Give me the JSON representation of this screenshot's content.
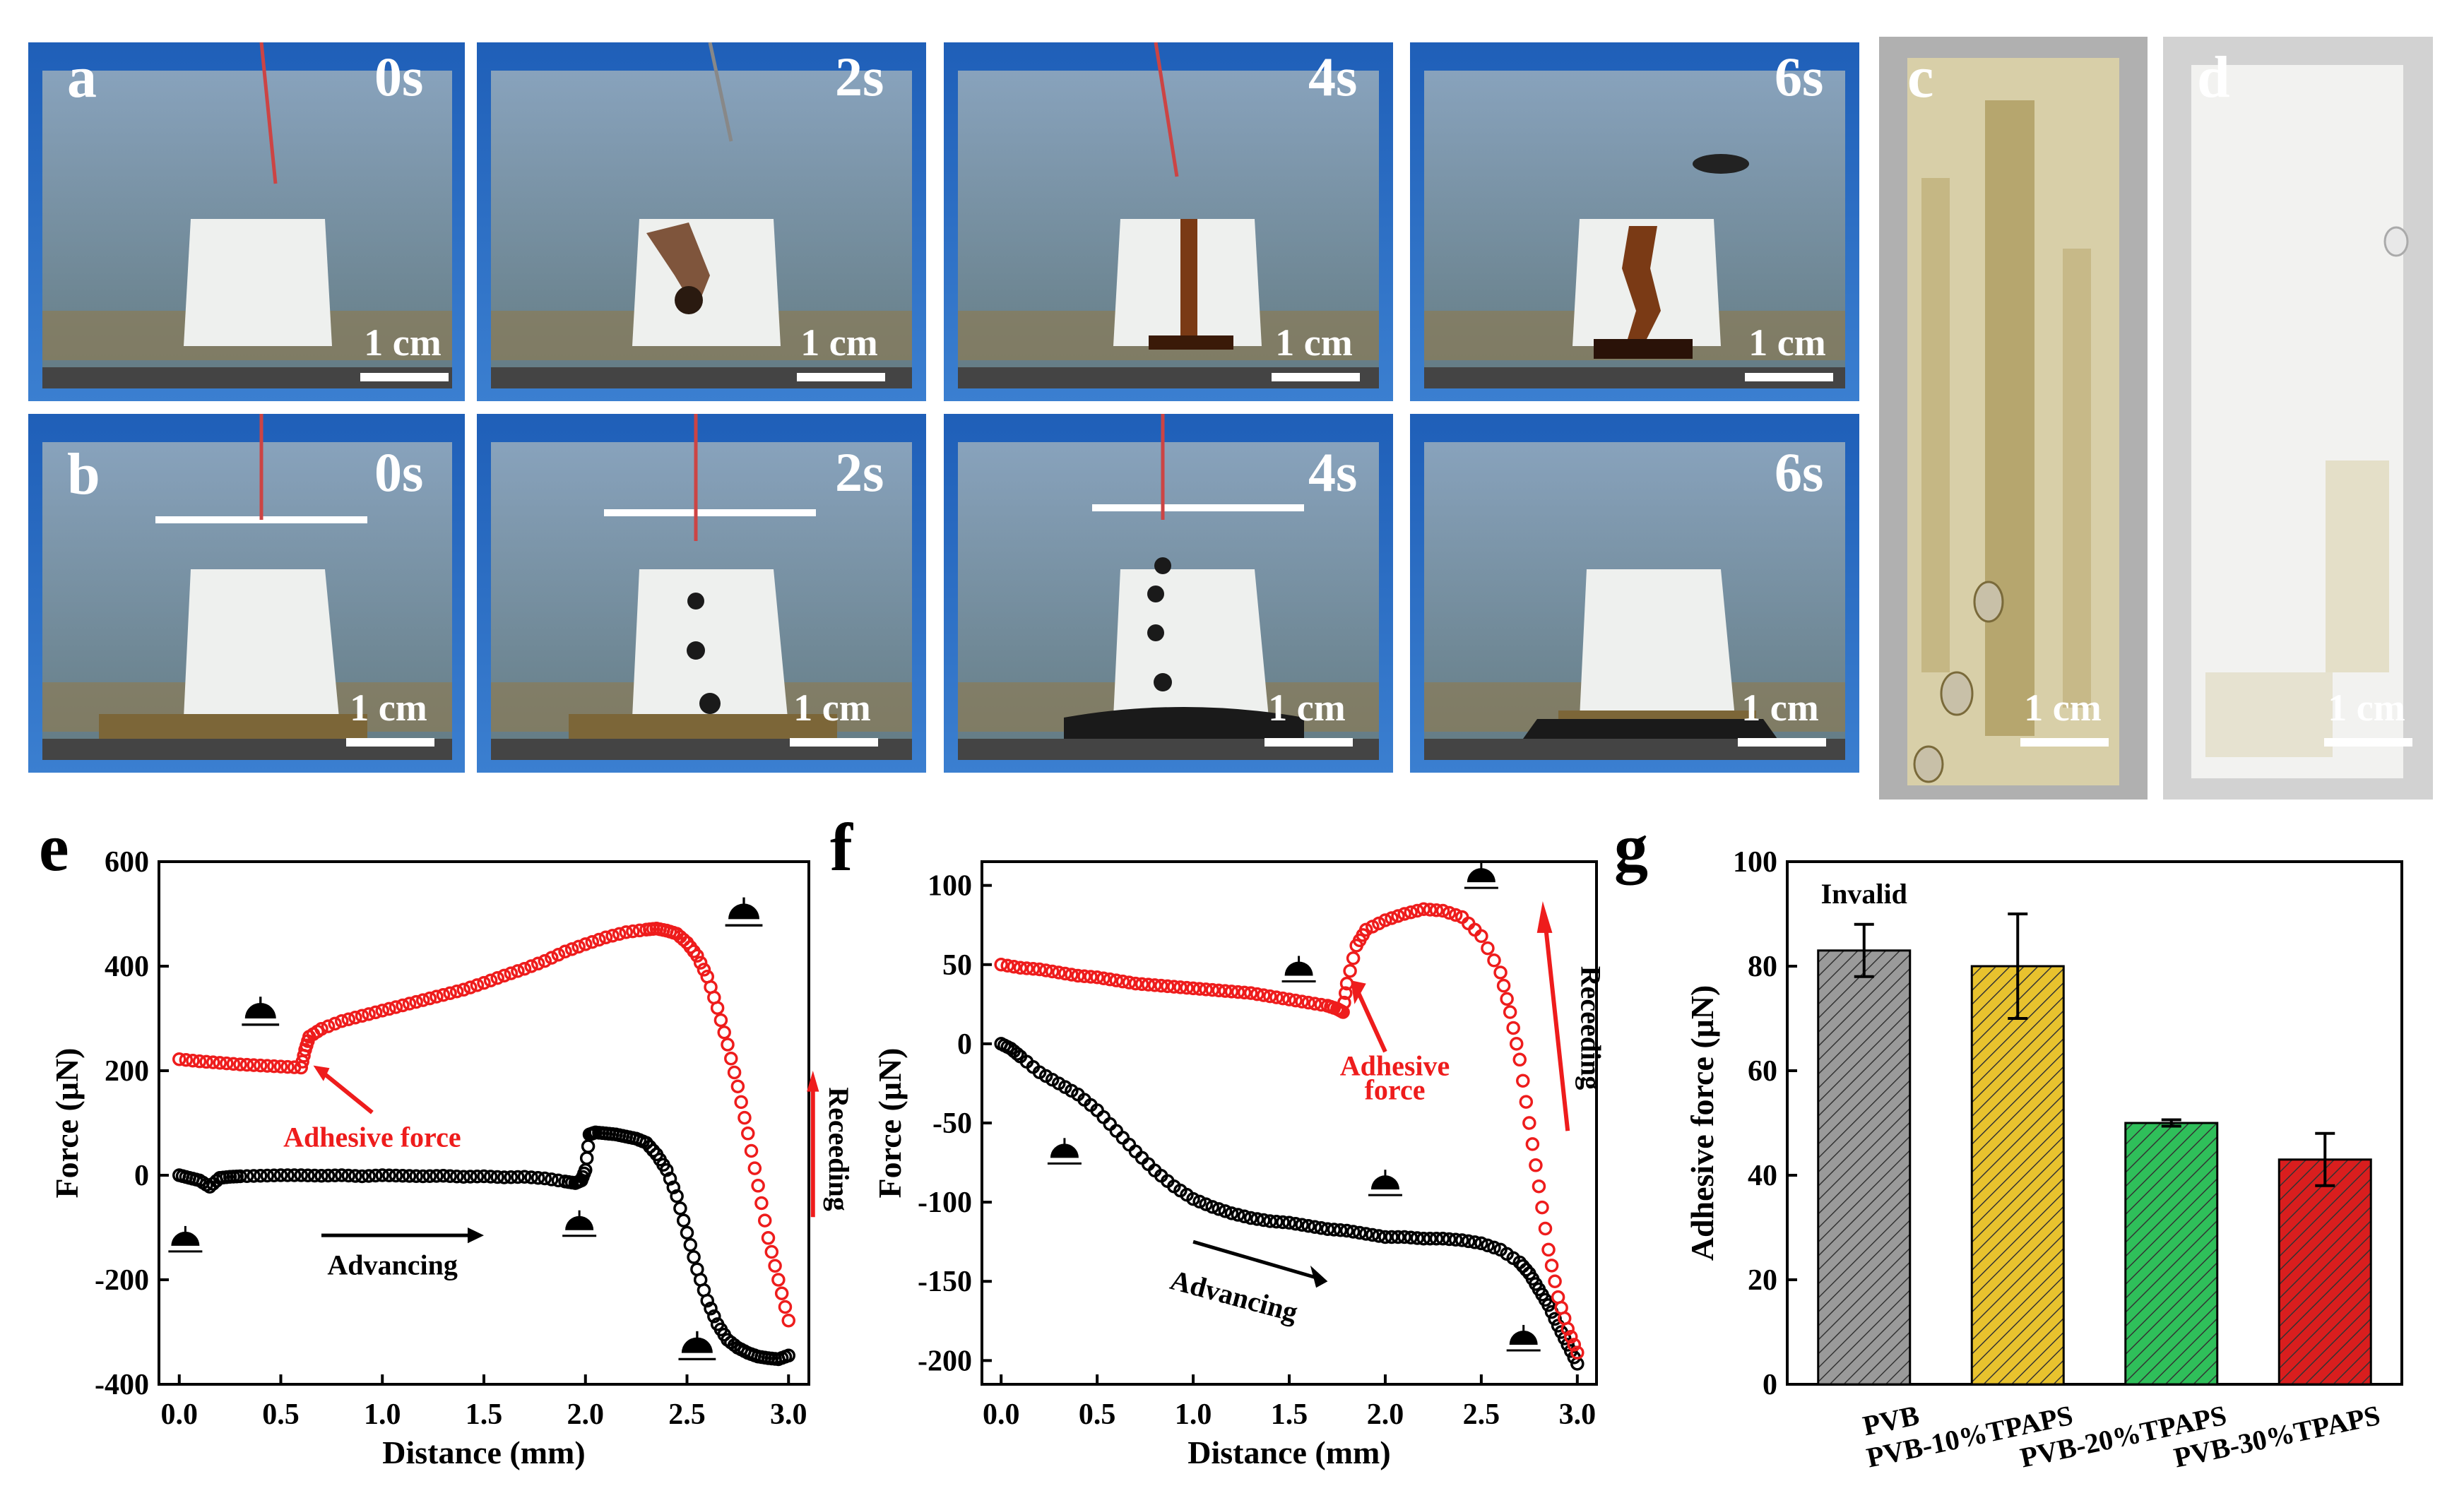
{
  "panel_labels": {
    "a": "a",
    "b": "b",
    "c": "c",
    "d": "d",
    "e": "e",
    "f": "f",
    "g": "g"
  },
  "photos": {
    "row_a": [
      {
        "time": "0s",
        "scale": "1 cm"
      },
      {
        "time": "2s",
        "scale": "1 cm"
      },
      {
        "time": "4s",
        "scale": "1 cm"
      },
      {
        "time": "6s",
        "scale": "1 cm"
      }
    ],
    "row_b": [
      {
        "time": "0s",
        "scale": "1 cm"
      },
      {
        "time": "2s",
        "scale": "1 cm"
      },
      {
        "time": "4s",
        "scale": "1 cm"
      },
      {
        "time": "6s",
        "scale": "1 cm"
      }
    ],
    "c": {
      "scale": "1 cm"
    },
    "d": {
      "scale": "1 cm"
    }
  },
  "colors": {
    "advancing": "#000000",
    "receding": "#ee1c1c",
    "annotation": "#ee1c1c",
    "PVB": "#9a9a9a",
    "PVB-10%TPAPS": "#e8c22e",
    "PVB-20%TPAPS": "#2fbf5a",
    "PVB-30%TPAPS": "#d91e1e"
  },
  "chart_data": [
    {
      "panel": "e",
      "type": "scatter",
      "xlabel": "Distance (mm)",
      "ylabel": "Force (μN)",
      "xlim": [
        -0.1,
        3.1
      ],
      "ylim": [
        -400,
        600
      ],
      "xticks": [
        0.0,
        0.5,
        1.0,
        1.5,
        2.0,
        2.5,
        3.0
      ],
      "xtick_labels": [
        "0.0",
        "0.5",
        "1.0",
        "1.5",
        "2.0",
        "2.5",
        "3.0"
      ],
      "yticks": [
        -400,
        -200,
        0,
        200,
        400,
        600
      ],
      "ytick_labels": [
        "-400",
        "-200",
        "0",
        "200",
        "400",
        "600"
      ],
      "series": [
        {
          "key": "advancing_e",
          "color": "#000000",
          "x": [
            0.0,
            0.05,
            0.1,
            0.15,
            0.2,
            0.25,
            0.3,
            0.4,
            0.5,
            0.6,
            0.7,
            0.8,
            0.9,
            1.0,
            1.1,
            1.2,
            1.3,
            1.4,
            1.5,
            1.6,
            1.7,
            1.8,
            1.9,
            1.95,
            1.98,
            2.0,
            2.02,
            2.05,
            2.1,
            2.15,
            2.2,
            2.25,
            2.3,
            2.35,
            2.4,
            2.45,
            2.5,
            2.55,
            2.6,
            2.65,
            2.7,
            2.75,
            2.8,
            2.85,
            2.9,
            2.95,
            3.0
          ],
          "y": [
            0,
            -5,
            -10,
            -22,
            -5,
            -3,
            -2,
            -1,
            0,
            0,
            -1,
            0,
            -2,
            0,
            -1,
            -2,
            -1,
            -3,
            -2,
            -4,
            -3,
            -6,
            -12,
            -15,
            -10,
            10,
            78,
            82,
            80,
            78,
            74,
            70,
            62,
            40,
            10,
            -40,
            -110,
            -180,
            -240,
            -285,
            -315,
            -330,
            -340,
            -347,
            -350,
            -352,
            -345
          ]
        },
        {
          "key": "receding_e",
          "color": "#ee1c1c",
          "x": [
            0.0,
            0.1,
            0.2,
            0.3,
            0.4,
            0.5,
            0.6,
            0.62,
            0.64,
            0.7,
            0.8,
            0.9,
            1.0,
            1.1,
            1.2,
            1.3,
            1.4,
            1.5,
            1.6,
            1.7,
            1.8,
            1.9,
            2.0,
            2.1,
            2.2,
            2.3,
            2.35,
            2.4,
            2.45,
            2.5,
            2.55,
            2.6,
            2.65,
            2.7,
            2.75,
            2.8,
            2.85,
            2.9,
            2.95,
            3.0
          ],
          "y": [
            222,
            218,
            215,
            212,
            210,
            208,
            206,
            240,
            265,
            280,
            295,
            305,
            315,
            325,
            335,
            345,
            355,
            368,
            382,
            395,
            410,
            428,
            442,
            455,
            465,
            470,
            472,
            468,
            462,
            445,
            420,
            380,
            320,
            250,
            170,
            80,
            -20,
            -120,
            -200,
            -278
          ]
        }
      ],
      "annotations": [
        {
          "text": "Adhesive  force",
          "color": "#ee1c1c"
        },
        {
          "text": "Advancing",
          "color": "#000000"
        },
        {
          "text": "Receeding",
          "color": "#ee1c1c"
        }
      ]
    },
    {
      "panel": "f",
      "type": "scatter",
      "xlabel": "Distance (mm)",
      "ylabel": "Force (μN)",
      "xlim": [
        -0.1,
        3.1
      ],
      "ylim": [
        -215,
        115
      ],
      "xticks": [
        0.0,
        0.5,
        1.0,
        1.5,
        2.0,
        2.5,
        3.0
      ],
      "xtick_labels": [
        "0.0",
        "0.5",
        "1.0",
        "1.5",
        "2.0",
        "2.5",
        "3.0"
      ],
      "yticks": [
        -200,
        -150,
        -100,
        -50,
        0,
        50,
        100
      ],
      "ytick_labels": [
        "-200",
        "-150",
        "-100",
        "-50",
        "0",
        "50",
        "100"
      ],
      "series": [
        {
          "key": "advancing_f",
          "color": "#000000",
          "x": [
            0.0,
            0.05,
            0.1,
            0.2,
            0.3,
            0.4,
            0.5,
            0.6,
            0.7,
            0.8,
            0.9,
            1.0,
            1.1,
            1.2,
            1.3,
            1.4,
            1.5,
            1.6,
            1.7,
            1.8,
            1.9,
            2.0,
            2.1,
            2.2,
            2.3,
            2.4,
            2.5,
            2.6,
            2.7,
            2.75,
            2.8,
            2.85,
            2.9,
            2.95,
            3.0
          ],
          "y": [
            0,
            -3,
            -8,
            -18,
            -25,
            -32,
            -42,
            -55,
            -68,
            -80,
            -90,
            -98,
            -103,
            -107,
            -110,
            -112,
            -113,
            -115,
            -117,
            -118,
            -120,
            -122,
            -122,
            -123,
            -123,
            -124,
            -126,
            -130,
            -138,
            -145,
            -155,
            -165,
            -178,
            -190,
            -202
          ]
        },
        {
          "key": "receding_f",
          "color": "#ee1c1c",
          "x": [
            0.0,
            0.1,
            0.2,
            0.3,
            0.4,
            0.5,
            0.6,
            0.7,
            0.8,
            0.9,
            1.0,
            1.1,
            1.2,
            1.3,
            1.4,
            1.5,
            1.6,
            1.7,
            1.75,
            1.78,
            1.8,
            1.85,
            1.9,
            2.0,
            2.1,
            2.2,
            2.3,
            2.4,
            2.5,
            2.6,
            2.65,
            2.7,
            2.75,
            2.8,
            2.85,
            2.9,
            2.95,
            3.0
          ],
          "y": [
            50,
            48,
            47,
            45,
            43,
            42,
            40,
            38,
            37,
            36,
            35,
            34,
            33,
            32,
            30,
            28,
            26,
            24,
            22,
            20,
            38,
            62,
            72,
            78,
            82,
            85,
            84,
            80,
            68,
            45,
            20,
            -10,
            -50,
            -90,
            -130,
            -160,
            -180,
            -195
          ]
        }
      ],
      "annotations": [
        {
          "text": "Adhesive",
          "color": "#ee1c1c"
        },
        {
          "text": "force",
          "color": "#ee1c1c"
        },
        {
          "text": "Advancing",
          "color": "#000000"
        },
        {
          "text": "Receeding",
          "color": "#ee1c1c"
        }
      ]
    },
    {
      "panel": "g",
      "type": "bar",
      "ylabel": "Adhesive force (μN)",
      "ylim": [
        0,
        100
      ],
      "yticks": [
        0,
        20,
        40,
        60,
        80,
        100
      ],
      "ytick_labels": [
        "0",
        "20",
        "40",
        "60",
        "80",
        "100"
      ],
      "categories": [
        "PVB",
        "PVB-10%TPAPS",
        "PVB-20%TPAPS",
        "PVB-30%TPAPS"
      ],
      "values": [
        83,
        80,
        50,
        43
      ],
      "errors": [
        5,
        10,
        0.6,
        5
      ],
      "annotations": [
        {
          "text": "Invalid",
          "color": "#000000"
        }
      ]
    }
  ]
}
